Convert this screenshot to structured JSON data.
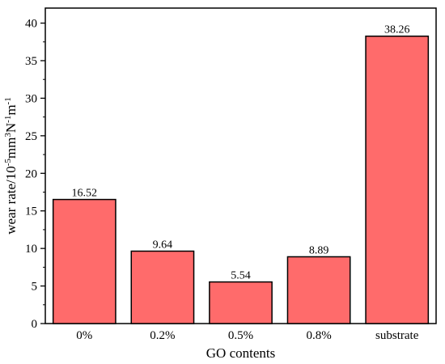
{
  "chart_data": {
    "type": "bar",
    "categories": [
      "0%",
      "0.2%",
      "0.5%",
      "0.8%",
      "substrate"
    ],
    "values": [
      16.52,
      9.64,
      5.54,
      8.89,
      38.26
    ],
    "data_labels": [
      "16.52",
      "9.64",
      "5.54",
      "8.89",
      "38.26"
    ],
    "xlabel": "GO contents",
    "ylabel": {
      "prefix": "wear rate/10",
      "exp1": "-5",
      "mid1": "mm",
      "exp2": "3",
      "mid2": "N",
      "exp3": "-1",
      "mid3": "m",
      "exp4": "-1"
    },
    "ylim": [
      0,
      42
    ],
    "yticks": [
      0,
      5,
      10,
      15,
      20,
      25,
      30,
      35,
      40
    ],
    "ytick_labels": [
      "0",
      "5",
      "10",
      "15",
      "20",
      "25",
      "30",
      "35",
      "40"
    ],
    "bar_color": "#ff6b6b",
    "edge_color": "#000000",
    "grid": false,
    "legend": "none"
  }
}
